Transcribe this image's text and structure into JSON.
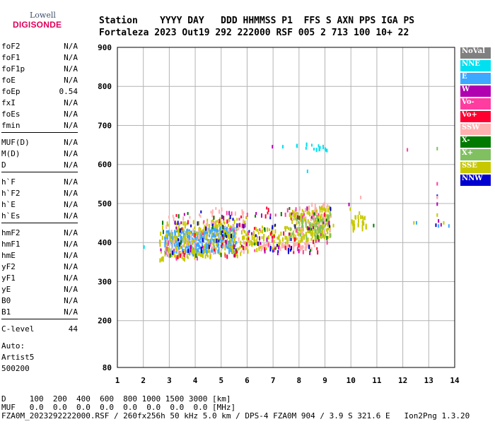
{
  "logo": {
    "line1": "Lowell",
    "line2": "DIGISONDE"
  },
  "header": {
    "line1": "Station    YYYY DAY   DDD HHMMSS P1  FFS S AXN PPS IGA PS",
    "line2": "Fortaleza 2023 Out19 292 222000 RSF 005 2 713 100 10+ 22"
  },
  "params": {
    "group1": [
      {
        "label": "foF2",
        "value": "N/A"
      },
      {
        "label": "foF1",
        "value": "N/A"
      },
      {
        "label": "foF1p",
        "value": "N/A"
      },
      {
        "label": "foE",
        "value": "N/A"
      },
      {
        "label": "foEp",
        "value": "0.54"
      },
      {
        "label": "fxI",
        "value": "N/A"
      },
      {
        "label": "foEs",
        "value": "N/A"
      },
      {
        "label": "fmin",
        "value": "N/A"
      }
    ],
    "group2": [
      {
        "label": "MUF(D)",
        "value": "N/A"
      },
      {
        "label": "M(D)",
        "value": "N/A"
      },
      {
        "label": "D",
        "value": "N/A"
      }
    ],
    "group3": [
      {
        "label": "h`F",
        "value": "N/A"
      },
      {
        "label": "h`F2",
        "value": "N/A"
      },
      {
        "label": "h`E",
        "value": "N/A"
      },
      {
        "label": "h`Es",
        "value": "N/A"
      }
    ],
    "group4": [
      {
        "label": "hmF2",
        "value": "N/A"
      },
      {
        "label": "hmF1",
        "value": "N/A"
      },
      {
        "label": "hmE",
        "value": "N/A"
      },
      {
        "label": "yF2",
        "value": "N/A"
      },
      {
        "label": "yF1",
        "value": "N/A"
      },
      {
        "label": "yE",
        "value": "N/A"
      },
      {
        "label": "B0",
        "value": "N/A"
      },
      {
        "label": "B1",
        "value": "N/A"
      }
    ],
    "group5": [
      {
        "label": "C-level",
        "value": "44"
      }
    ],
    "auto": [
      "Auto:",
      "Artist5",
      "500200"
    ]
  },
  "legend": [
    {
      "label": "NoVal",
      "color": "#808080"
    },
    {
      "label": "NNE",
      "color": "#00e0f0"
    },
    {
      "label": "E",
      "color": "#3ca8ff"
    },
    {
      "label": "W",
      "color": "#b000b0"
    },
    {
      "label": "Vo-",
      "color": "#ff3ca0"
    },
    {
      "label": "Vo+",
      "color": "#ff0030"
    },
    {
      "label": "SSW",
      "color": "#ffb0b0"
    },
    {
      "label": "X-",
      "color": "#007a00"
    },
    {
      "label": "X+",
      "color": "#80c060"
    },
    {
      "label": "SSE",
      "color": "#c8c800"
    },
    {
      "label": "NNW",
      "color": "#0000d0"
    }
  ],
  "footer": {
    "line1": "D     100  200  400  600  800 1000 1500 3000 [km]",
    "line2": "MUF   0.0  0.0  0.0  0.0  0.0  0.0  0.0  0.0 [MHz]",
    "line3": "FZA0M_2023292222000.RSF / 260fx256h 50 kHz 5.0 km / DPS-4 FZA0M 904 / 3.9 S 321.6 E   Ion2Png 1.3.20"
  },
  "chart_data": {
    "type": "scatter",
    "xlim": [
      1,
      14
    ],
    "ylim": [
      80,
      900
    ],
    "xticks": [
      1,
      2,
      3,
      4,
      5,
      6,
      7,
      8,
      9,
      10,
      11,
      12,
      13,
      14
    ],
    "yticks": [
      80,
      200,
      300,
      400,
      500,
      600,
      700,
      800,
      900
    ],
    "grid": true,
    "clusters": [
      {
        "series": "E",
        "x": [
          2.8,
          5.6
        ],
        "y": [
          370,
          445
        ],
        "count": 420
      },
      {
        "series": "SSE",
        "x": [
          2.6,
          6.0
        ],
        "y": [
          355,
          470
        ],
        "count": 260
      },
      {
        "series": "SSW",
        "x": [
          2.8,
          6.0
        ],
        "y": [
          360,
          500
        ],
        "count": 90
      },
      {
        "series": "SSE",
        "x": [
          5.8,
          7.6
        ],
        "y": [
          380,
          450
        ],
        "count": 90
      },
      {
        "series": "SSW",
        "x": [
          6.4,
          8.6
        ],
        "y": [
          385,
          405
        ],
        "count": 70
      },
      {
        "series": "SSE",
        "x": [
          7.6,
          9.2
        ],
        "y": [
          400,
          500
        ],
        "count": 200
      },
      {
        "series": "SSW",
        "x": [
          7.8,
          9.2
        ],
        "y": [
          420,
          510
        ],
        "count": 50
      },
      {
        "series": "X+",
        "x": [
          7.6,
          9.2
        ],
        "y": [
          410,
          480
        ],
        "count": 60
      },
      {
        "series": "SSE",
        "x": [
          10.0,
          10.6
        ],
        "y": [
          435,
          475
        ],
        "count": 30
      },
      {
        "series": "NNW",
        "x": [
          2.6,
          9.2
        ],
        "y": [
          360,
          500
        ],
        "count": 50
      },
      {
        "series": "Vo+",
        "x": [
          2.6,
          9.2
        ],
        "y": [
          360,
          500
        ],
        "count": 50
      },
      {
        "series": "Vo-",
        "x": [
          2.6,
          9.2
        ],
        "y": [
          360,
          500
        ],
        "count": 40
      },
      {
        "series": "W",
        "x": [
          2.6,
          9.2
        ],
        "y": [
          360,
          500
        ],
        "count": 35
      },
      {
        "series": "X-",
        "x": [
          2.6,
          9.2
        ],
        "y": [
          360,
          500
        ],
        "count": 30
      },
      {
        "series": "NNE",
        "x": [
          7.8,
          9.0
        ],
        "y": [
          640,
          660
        ],
        "count": 14
      }
    ],
    "points": [
      {
        "series": "NNE",
        "x": 7.35,
        "y": 650
      },
      {
        "series": "NNE",
        "x": 9.0,
        "y": 642
      },
      {
        "series": "NNE",
        "x": 9.05,
        "y": 640
      },
      {
        "series": "NNE",
        "x": 8.3,
        "y": 587
      },
      {
        "series": "NNE",
        "x": 2.0,
        "y": 393
      },
      {
        "series": "E",
        "x": 13.35,
        "y": 447
      },
      {
        "series": "E",
        "x": 13.75,
        "y": 447
      },
      {
        "series": "E",
        "x": 12.5,
        "y": 455
      },
      {
        "series": "W",
        "x": 6.95,
        "y": 650
      },
      {
        "series": "W",
        "x": 9.9,
        "y": 502
      },
      {
        "series": "W",
        "x": 13.3,
        "y": 503
      },
      {
        "series": "W",
        "x": 13.35,
        "y": 460
      },
      {
        "series": "W",
        "x": 13.45,
        "y": 450
      },
      {
        "series": "Vo-",
        "x": 12.15,
        "y": 642
      },
      {
        "series": "Vo-",
        "x": 13.3,
        "y": 555
      },
      {
        "series": "NNW",
        "x": 13.3,
        "y": 523
      },
      {
        "series": "NNW",
        "x": 13.25,
        "y": 449
      },
      {
        "series": "X+",
        "x": 13.3,
        "y": 645
      },
      {
        "series": "X-",
        "x": 10.85,
        "y": 448
      },
      {
        "series": "SSE",
        "x": 9.3,
        "y": 448
      },
      {
        "series": "SSE",
        "x": 9.95,
        "y": 490
      },
      {
        "series": "SSE",
        "x": 10.3,
        "y": 480
      },
      {
        "series": "SSE",
        "x": 13.3,
        "y": 475
      },
      {
        "series": "SSE",
        "x": 13.55,
        "y": 455
      },
      {
        "series": "SSE",
        "x": 12.4,
        "y": 455
      },
      {
        "series": "SSW",
        "x": 13.3,
        "y": 520
      },
      {
        "series": "SSW",
        "x": 10.35,
        "y": 520
      }
    ]
  }
}
